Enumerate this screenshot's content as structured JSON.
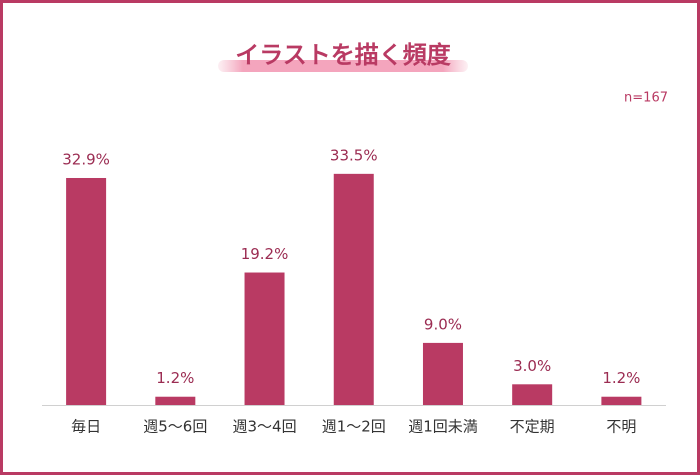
{
  "chart_data": {
    "type": "bar",
    "title": "イラストを描く頻度",
    "annotation": "n=167",
    "categories": [
      "毎日",
      "週5～6回",
      "週3～4回",
      "週1～2回",
      "週1回未満",
      "不定期",
      "不明"
    ],
    "values": [
      32.9,
      1.2,
      19.2,
      33.5,
      9.0,
      3.0,
      1.2
    ],
    "value_labels": [
      "32.9%",
      "1.2%",
      "19.2%",
      "33.5%",
      "9.0%",
      "3.0%",
      "1.2%"
    ],
    "color": "#b93a63"
  }
}
